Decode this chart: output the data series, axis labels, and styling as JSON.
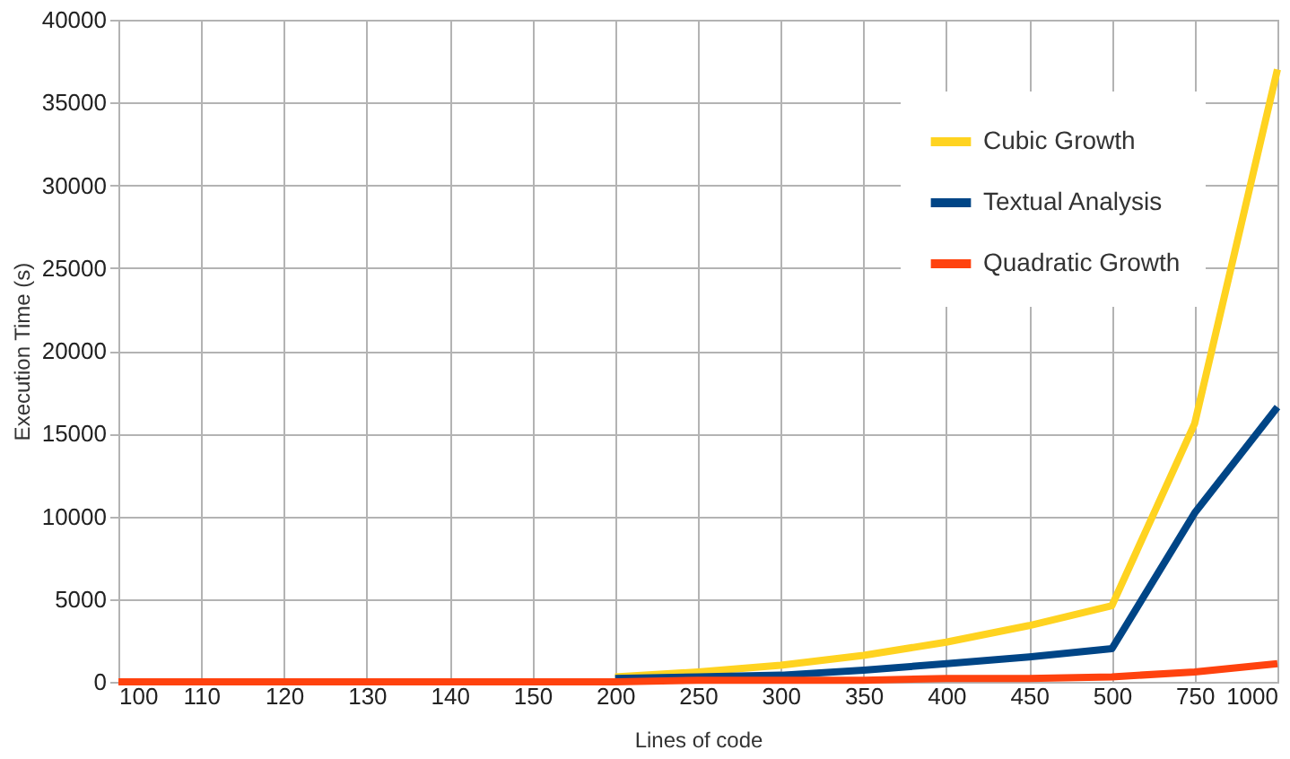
{
  "chart_data": {
    "type": "line",
    "xlabel": "Lines of code",
    "ylabel": "Execution Time (s)",
    "categories": [
      "100",
      "110",
      "120",
      "130",
      "140",
      "150",
      "200",
      "250",
      "300",
      "350",
      "400",
      "450",
      "500",
      "750",
      "1000"
    ],
    "series": [
      {
        "name": "Cubic Growth",
        "color": "#ffd320",
        "values": [
          null,
          null,
          null,
          null,
          null,
          null,
          300,
          600,
          1000,
          1600,
          2400,
          3400,
          4600,
          15600,
          37000
        ]
      },
      {
        "name": "Textual Analysis",
        "color": "#004586",
        "values": [
          null,
          null,
          null,
          null,
          null,
          null,
          200,
          300,
          400,
          700,
          1100,
          1500,
          2000,
          10200,
          16600
        ]
      },
      {
        "name": "Quadratic Growth",
        "color": "#ff420e",
        "values": [
          0,
          0,
          0,
          0,
          0,
          0,
          0,
          100,
          100,
          100,
          200,
          200,
          300,
          600,
          1100
        ]
      }
    ],
    "ylim": [
      0,
      40000
    ],
    "yticks": [
      0,
      5000,
      10000,
      15000,
      20000,
      25000,
      30000,
      35000,
      40000
    ],
    "grid": true,
    "legend": "top right",
    "marker": "none",
    "line_style": "solid"
  }
}
